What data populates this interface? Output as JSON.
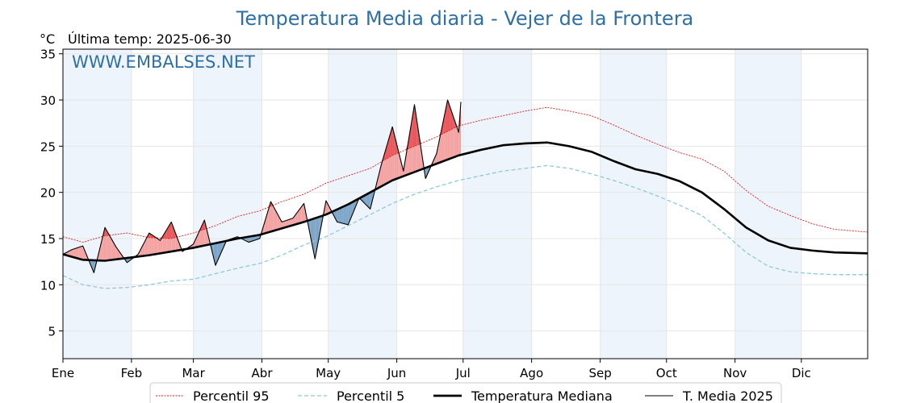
{
  "title": "Temperatura Media diaria - Vejer de la Frontera",
  "unit_label": "°C",
  "last_temp_label": "Última temp: 2025-06-30",
  "watermark": "WWW.EMBALSES.NET",
  "colors": {
    "title": "#2e6fa5",
    "watermark": "#2e6fa5",
    "p95": "#e31a1c",
    "p5": "#8ec9dc",
    "median": "#000000",
    "current": "#000000",
    "above_fill": "#f4a3a3",
    "above_strong_fill": "#e8585c",
    "below_fill": "#7ea6c8",
    "band": "#eef4fb"
  },
  "chart_data": {
    "type": "line",
    "x_unit": "day of year",
    "xlim": [
      1,
      365
    ],
    "ylim": [
      2,
      35.5
    ],
    "yticks": [
      5,
      10,
      15,
      20,
      25,
      30,
      35
    ],
    "grid": true,
    "legend_position": "bottom",
    "months": [
      {
        "label": "Ene",
        "day": 1
      },
      {
        "label": "Feb",
        "day": 32
      },
      {
        "label": "Mar",
        "day": 60
      },
      {
        "label": "Abr",
        "day": 91
      },
      {
        "label": "May",
        "day": 121
      },
      {
        "label": "Jun",
        "day": 152
      },
      {
        "label": "Jul",
        "day": 182
      },
      {
        "label": "Ago",
        "day": 213
      },
      {
        "label": "Sep",
        "day": 244
      },
      {
        "label": "Oct",
        "day": 274
      },
      {
        "label": "Nov",
        "day": 305
      },
      {
        "label": "Dic",
        "day": 335
      }
    ],
    "shaded_months": [
      "Ene",
      "Mar",
      "May",
      "Jul",
      "Sep",
      "Nov"
    ],
    "series": [
      {
        "name": "Percentil 95",
        "x": [
          1,
          10,
          20,
          30,
          40,
          50,
          60,
          70,
          80,
          90,
          100,
          110,
          120,
          130,
          140,
          150,
          160,
          170,
          180,
          190,
          200,
          210,
          220,
          230,
          240,
          250,
          260,
          270,
          280,
          290,
          300,
          310,
          320,
          330,
          340,
          350,
          365
        ],
        "y": [
          15.2,
          14.6,
          15.3,
          15.6,
          15.1,
          15.0,
          15.6,
          16.4,
          17.4,
          18.0,
          19.0,
          19.8,
          21.0,
          21.8,
          22.6,
          24.0,
          25.0,
          26.0,
          27.2,
          27.8,
          28.3,
          28.8,
          29.2,
          28.8,
          28.3,
          27.3,
          26.2,
          25.2,
          24.3,
          23.6,
          22.3,
          20.2,
          18.5,
          17.5,
          16.6,
          16.0,
          15.7
        ]
      },
      {
        "name": "Percentil 5",
        "x": [
          1,
          10,
          20,
          30,
          40,
          50,
          60,
          70,
          80,
          90,
          100,
          110,
          120,
          130,
          140,
          150,
          160,
          170,
          180,
          190,
          200,
          210,
          220,
          230,
          240,
          250,
          260,
          270,
          280,
          290,
          300,
          310,
          320,
          330,
          340,
          350,
          365
        ],
        "y": [
          11.0,
          10.0,
          9.6,
          9.7,
          10.0,
          10.4,
          10.6,
          11.2,
          11.8,
          12.3,
          13.2,
          14.3,
          15.2,
          16.4,
          17.6,
          18.8,
          19.8,
          20.6,
          21.3,
          21.8,
          22.3,
          22.6,
          22.9,
          22.6,
          22.0,
          21.3,
          20.5,
          19.6,
          18.6,
          17.5,
          15.6,
          13.5,
          12.0,
          11.4,
          11.2,
          11.1,
          11.1
        ]
      },
      {
        "name": "Temperatura Mediana",
        "x": [
          1,
          10,
          20,
          30,
          40,
          50,
          60,
          70,
          80,
          90,
          100,
          110,
          120,
          130,
          140,
          150,
          160,
          170,
          180,
          190,
          200,
          210,
          220,
          230,
          240,
          250,
          260,
          270,
          280,
          290,
          300,
          310,
          320,
          330,
          340,
          350,
          365
        ],
        "y": [
          13.3,
          12.7,
          12.6,
          12.9,
          13.2,
          13.6,
          14.0,
          14.5,
          15.0,
          15.4,
          16.1,
          16.8,
          17.6,
          18.7,
          20.0,
          21.3,
          22.2,
          23.1,
          24.0,
          24.6,
          25.1,
          25.3,
          25.4,
          25.0,
          24.4,
          23.4,
          22.5,
          22.0,
          21.2,
          20.0,
          18.2,
          16.2,
          14.8,
          14.0,
          13.7,
          13.5,
          13.4
        ]
      },
      {
        "name": "T. Media 2025",
        "x": [
          1,
          5,
          10,
          15,
          20,
          25,
          30,
          35,
          40,
          45,
          50,
          55,
          60,
          65,
          70,
          75,
          80,
          85,
          90,
          95,
          100,
          105,
          110,
          115,
          120,
          125,
          130,
          135,
          140,
          145,
          150,
          155,
          160,
          165,
          170,
          175,
          180,
          181
        ],
        "y": [
          13.3,
          13.8,
          14.2,
          11.3,
          16.2,
          14.1,
          12.4,
          13.3,
          15.6,
          14.8,
          16.8,
          13.6,
          14.4,
          17.0,
          12.1,
          14.8,
          15.2,
          14.6,
          15.0,
          19.0,
          16.8,
          17.2,
          18.8,
          12.8,
          19.1,
          16.8,
          16.5,
          19.4,
          18.2,
          23.0,
          27.1,
          22.3,
          29.5,
          21.5,
          24.2,
          30.0,
          26.5,
          29.8
        ]
      }
    ]
  },
  "legend": {
    "items": [
      {
        "label": "Percentil 95",
        "style": "p95"
      },
      {
        "label": "Percentil 5",
        "style": "p5"
      },
      {
        "label": "Temperatura Mediana",
        "style": "median"
      },
      {
        "label": "T. Media 2025",
        "style": "current"
      }
    ]
  }
}
